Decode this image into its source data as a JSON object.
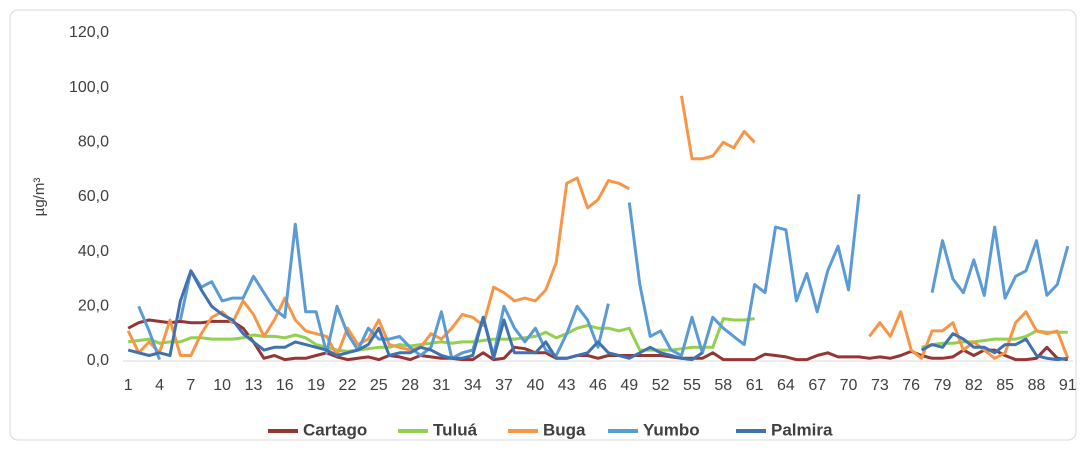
{
  "chart_data": {
    "type": "line",
    "y_label": "µg/m³",
    "x": [
      1,
      2,
      3,
      4,
      5,
      6,
      7,
      8,
      9,
      10,
      11,
      12,
      13,
      14,
      15,
      16,
      17,
      18,
      19,
      20,
      21,
      22,
      23,
      24,
      25,
      26,
      27,
      28,
      29,
      30,
      31,
      32,
      33,
      34,
      35,
      36,
      37,
      38,
      39,
      40,
      41,
      42,
      43,
      44,
      45,
      46,
      47,
      48,
      49,
      50,
      51,
      52,
      53,
      54,
      55,
      56,
      57,
      58,
      59,
      60,
      61,
      62,
      63,
      64,
      65,
      66,
      67,
      68,
      69,
      70,
      71,
      72,
      73,
      74,
      75,
      76,
      77,
      78,
      79,
      80,
      81,
      82,
      83,
      84,
      85,
      86,
      87,
      88,
      89,
      90,
      91
    ],
    "xlim": [
      0.5,
      91.5
    ],
    "xticks": [
      1,
      4,
      7,
      10,
      13,
      16,
      19,
      22,
      25,
      28,
      31,
      34,
      37,
      40,
      43,
      46,
      49,
      52,
      55,
      58,
      61,
      64,
      67,
      70,
      73,
      76,
      79,
      82,
      85,
      88,
      91
    ],
    "ylim": [
      0,
      120
    ],
    "yticks": [
      {
        "value": 0,
        "label": "0,0"
      },
      {
        "value": 20,
        "label": "20,0"
      },
      {
        "value": 40,
        "label": "40,0"
      },
      {
        "value": 60,
        "label": "60,0"
      },
      {
        "value": 80,
        "label": "80,0"
      },
      {
        "value": 100,
        "label": "100,0"
      },
      {
        "value": 120,
        "label": "120,0"
      }
    ],
    "grid": false,
    "legend": "bottom",
    "series": [
      {
        "name": "Cartago",
        "color": "#943634",
        "values": [
          12,
          14,
          15,
          14.5,
          14,
          14.5,
          14,
          14,
          14.5,
          14.5,
          14.5,
          12,
          7,
          1,
          2,
          0.5,
          1,
          1,
          2,
          3,
          1.5,
          0.5,
          1,
          1.5,
          0.5,
          2,
          1.5,
          0.5,
          2,
          1.5,
          1,
          1,
          0.5,
          0.5,
          3,
          0.5,
          1,
          5,
          4.5,
          3,
          3,
          1,
          1,
          2,
          2,
          1,
          2,
          2,
          2,
          2,
          2,
          2,
          1.5,
          1,
          1,
          1,
          3,
          0.5,
          0.5,
          0.5,
          0.5,
          2.5,
          2,
          1.5,
          0.5,
          0.5,
          2,
          3,
          1.5,
          1.5,
          1.5,
          1,
          1.5,
          1,
          2,
          3.5,
          2,
          1,
          1,
          1.5,
          4,
          2,
          4,
          4,
          2,
          0.5,
          0.5,
          1,
          5,
          1,
          0.5
        ]
      },
      {
        "name": "Tuluá",
        "color": "#92d050",
        "values": [
          7,
          7.5,
          8,
          6.5,
          7,
          7,
          8.5,
          8.5,
          8,
          8,
          8,
          8.5,
          9.5,
          9,
          9,
          8.5,
          9.5,
          8.5,
          6,
          5,
          4,
          3.5,
          4,
          4.5,
          5,
          5,
          6,
          5.5,
          6,
          6.5,
          7,
          6.5,
          7,
          7,
          7.5,
          8,
          8,
          8,
          8.5,
          9,
          10.5,
          8.5,
          10,
          12,
          13,
          12,
          12,
          11,
          12,
          4,
          4,
          4,
          4,
          4.5,
          5,
          5,
          5,
          15.5,
          15,
          15,
          15.5,
          null,
          null,
          null,
          null,
          null,
          null,
          null,
          null,
          null,
          null,
          null,
          null,
          null,
          null,
          null,
          5,
          6,
          6.5,
          6.5,
          7,
          7,
          7.5,
          8,
          8,
          8,
          9,
          11,
          10.5,
          10.5,
          10.5
        ]
      },
      {
        "name": "Buga",
        "color": "#f79646",
        "values": [
          11,
          3,
          7,
          3,
          15,
          2,
          2,
          10,
          16,
          18,
          14,
          22,
          17,
          9,
          15,
          23,
          15,
          11,
          10,
          9,
          2,
          12,
          6,
          8,
          15,
          6,
          5,
          4,
          5,
          10,
          8,
          12,
          17,
          16,
          13,
          27,
          25,
          22,
          23,
          22,
          26,
          36,
          65,
          67,
          56,
          59,
          66,
          65,
          63,
          null,
          null,
          null,
          null,
          97,
          74,
          74,
          75,
          80,
          78,
          84,
          80,
          null,
          null,
          null,
          null,
          null,
          null,
          null,
          null,
          null,
          null,
          9,
          14,
          9,
          18,
          4,
          1,
          11,
          11,
          14,
          4,
          7,
          4,
          1,
          3,
          14,
          18,
          11,
          10,
          11,
          1
        ]
      },
      {
        "name": "Yumbo",
        "color": "#5b9bd5",
        "values": [
          null,
          20,
          11,
          0.5,
          null,
          15,
          33,
          27,
          29,
          22,
          23,
          23,
          31,
          25,
          19,
          16,
          50,
          18,
          18,
          3,
          20,
          10,
          4,
          12,
          8,
          8,
          9,
          5,
          2,
          5,
          18,
          1,
          3,
          4,
          16,
          2,
          20,
          12,
          7,
          12,
          4,
          2,
          10,
          20,
          15,
          5,
          21,
          null,
          58,
          28,
          9,
          11,
          4,
          2,
          16,
          3,
          16,
          12,
          9,
          6,
          28,
          25,
          49,
          48,
          22,
          32,
          18,
          33,
          42,
          26,
          61,
          null,
          null,
          null,
          null,
          null,
          null,
          25,
          44,
          30,
          25,
          37,
          24,
          49,
          23,
          31,
          33,
          44,
          24,
          28,
          42
        ]
      },
      {
        "name": "Palmira",
        "color": "#4172b0",
        "values": [
          4,
          3,
          2,
          3,
          2,
          22,
          33,
          26,
          20,
          17,
          15,
          10,
          7,
          4,
          5,
          5,
          7,
          6,
          5,
          4,
          2,
          3,
          4,
          6,
          12,
          2,
          3,
          3,
          5,
          4,
          2,
          1,
          1,
          2,
          16,
          1,
          15,
          3,
          3,
          3,
          7,
          1,
          1,
          2,
          3,
          7,
          3,
          2,
          1,
          3,
          5,
          3,
          2,
          1,
          0.5,
          3,
          null,
          null,
          null,
          null,
          null,
          null,
          null,
          null,
          null,
          null,
          null,
          null,
          null,
          null,
          null,
          null,
          null,
          null,
          null,
          null,
          4,
          6,
          5,
          10,
          8,
          5,
          5,
          3,
          6,
          6,
          8,
          2,
          1,
          0.5,
          1
        ]
      }
    ]
  }
}
